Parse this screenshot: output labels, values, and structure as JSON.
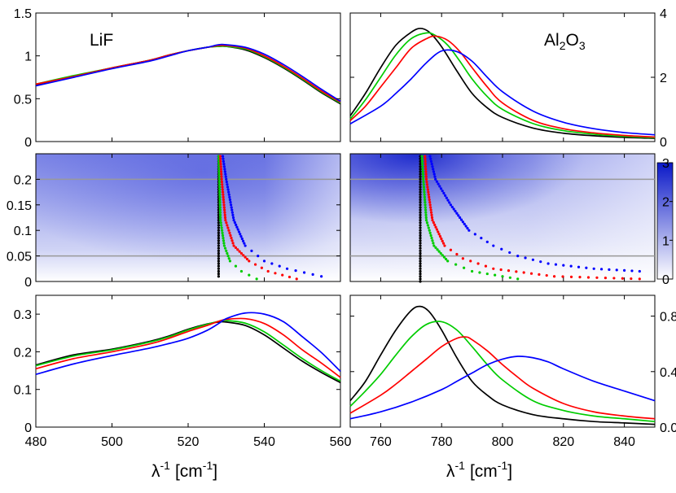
{
  "chart_data": [
    {
      "id": "lif-top",
      "type": "line",
      "xlim": [
        480,
        560
      ],
      "ylim": [
        0,
        1.5
      ],
      "yticks": [
        0,
        0.5,
        1,
        1.5
      ],
      "ytick_labels": [
        "0",
        "0.5",
        "1",
        "1.5"
      ],
      "label": "LiF",
      "series": [
        {
          "color": "#000000",
          "x": [
            480,
            490,
            500,
            510,
            515,
            520,
            525,
            528,
            530,
            535,
            540,
            545,
            550,
            555,
            560
          ],
          "y": [
            0.66,
            0.76,
            0.86,
            0.95,
            1.01,
            1.06,
            1.1,
            1.11,
            1.11,
            1.07,
            0.98,
            0.86,
            0.72,
            0.57,
            0.44
          ]
        },
        {
          "color": "#00cc00",
          "x": [
            480,
            490,
            500,
            510,
            515,
            520,
            525,
            528,
            530,
            535,
            540,
            545,
            550,
            555,
            560
          ],
          "y": [
            0.67,
            0.77,
            0.86,
            0.95,
            1.01,
            1.06,
            1.1,
            1.11,
            1.11,
            1.08,
            0.99,
            0.87,
            0.73,
            0.58,
            0.45
          ]
        },
        {
          "color": "#ff0000",
          "x": [
            480,
            490,
            500,
            510,
            515,
            520,
            525,
            528,
            530,
            535,
            540,
            545,
            550,
            555,
            560
          ],
          "y": [
            0.67,
            0.76,
            0.86,
            0.95,
            1.01,
            1.06,
            1.1,
            1.12,
            1.12,
            1.09,
            1.0,
            0.88,
            0.74,
            0.59,
            0.46
          ]
        },
        {
          "color": "#0000ff",
          "x": [
            480,
            490,
            500,
            510,
            515,
            520,
            525,
            528,
            530,
            535,
            540,
            545,
            550,
            555,
            560
          ],
          "y": [
            0.65,
            0.75,
            0.85,
            0.94,
            1.0,
            1.06,
            1.1,
            1.13,
            1.13,
            1.1,
            1.02,
            0.9,
            0.76,
            0.61,
            0.47
          ]
        }
      ]
    },
    {
      "id": "al2o3-top",
      "type": "line",
      "xlim": [
        750,
        850
      ],
      "ylim": [
        0,
        4
      ],
      "yticks": [
        0,
        2,
        4
      ],
      "ytick_labels": [
        "0",
        "2",
        "4"
      ],
      "label_main": "Al",
      "label_sub1": "2",
      "label_mid": "O",
      "label_sub2": "3",
      "series": [
        {
          "color": "#000000",
          "x": [
            750,
            755,
            760,
            765,
            770,
            773,
            776,
            780,
            785,
            790,
            795,
            800,
            810,
            820,
            830,
            840,
            850
          ],
          "y": [
            0.8,
            1.5,
            2.3,
            3.0,
            3.4,
            3.52,
            3.4,
            2.95,
            2.2,
            1.5,
            1.05,
            0.75,
            0.42,
            0.26,
            0.18,
            0.13,
            0.1
          ]
        },
        {
          "color": "#00cc00",
          "x": [
            750,
            755,
            760,
            765,
            770,
            775,
            778,
            782,
            786,
            790,
            795,
            800,
            810,
            820,
            830,
            840,
            850
          ],
          "y": [
            0.7,
            1.3,
            2.0,
            2.7,
            3.2,
            3.38,
            3.3,
            3.0,
            2.5,
            1.95,
            1.4,
            1.0,
            0.56,
            0.34,
            0.23,
            0.16,
            0.12
          ]
        },
        {
          "color": "#ff0000",
          "x": [
            750,
            755,
            760,
            765,
            770,
            775,
            778,
            782,
            786,
            790,
            795,
            800,
            810,
            820,
            830,
            840,
            850
          ],
          "y": [
            0.65,
            1.1,
            1.7,
            2.3,
            2.9,
            3.2,
            3.28,
            3.15,
            2.8,
            2.3,
            1.7,
            1.2,
            0.66,
            0.4,
            0.27,
            0.19,
            0.14
          ]
        },
        {
          "color": "#0000ff",
          "x": [
            750,
            760,
            765,
            770,
            775,
            780,
            785,
            790,
            795,
            800,
            810,
            820,
            830,
            840,
            850
          ],
          "y": [
            0.55,
            1.1,
            1.5,
            1.95,
            2.45,
            2.82,
            2.8,
            2.5,
            2.0,
            1.55,
            0.95,
            0.6,
            0.4,
            0.28,
            0.21
          ]
        }
      ]
    },
    {
      "id": "lif-mid",
      "type": "heatmap",
      "xlim": [
        480,
        560
      ],
      "ylim": [
        0,
        0.25
      ],
      "yticks": [
        0,
        0.05,
        0.1,
        0.15,
        0.2
      ],
      "ytick_labels": [
        "0",
        "0.05",
        "0.1",
        "0.15",
        "0.2"
      ],
      "hlines": [
        0.05,
        0.2
      ],
      "hline_color": "#999999",
      "dots": [
        {
          "color": "#000000",
          "points": [
            [
              528.0,
              0.01
            ],
            [
              528.0,
              0.05
            ],
            [
              528.0,
              0.1
            ],
            [
              528.0,
              0.15
            ],
            [
              528.0,
              0.2
            ],
            [
              528.0,
              0.25
            ]
          ]
        },
        {
          "color": "#00cc00",
          "points": [
            [
              538.0,
              0.005
            ],
            [
              534.0,
              0.02
            ],
            [
              531.0,
              0.04
            ],
            [
              529.5,
              0.07
            ],
            [
              528.5,
              0.12
            ],
            [
              528.2,
              0.2
            ],
            [
              528.0,
              0.25
            ]
          ]
        },
        {
          "color": "#ff0000",
          "points": [
            [
              548.5,
              0.005
            ],
            [
              541.0,
              0.02
            ],
            [
              536.0,
              0.04
            ],
            [
              532.0,
              0.07
            ],
            [
              529.8,
              0.12
            ],
            [
              528.8,
              0.2
            ],
            [
              528.4,
              0.25
            ]
          ]
        },
        {
          "color": "#0000ff",
          "points": [
            [
              555.0,
              0.01
            ],
            [
              546.0,
              0.025
            ],
            [
              540.0,
              0.04
            ],
            [
              535.0,
              0.07
            ],
            [
              532.0,
              0.12
            ],
            [
              530.0,
              0.2
            ],
            [
              529.0,
              0.25
            ]
          ]
        }
      ]
    },
    {
      "id": "al2o3-mid",
      "type": "heatmap",
      "xlim": [
        750,
        850
      ],
      "ylim": [
        0,
        0.25
      ],
      "hlines": [
        0.05,
        0.2
      ],
      "hline_color": "#999999",
      "colorbar": {
        "min": 0,
        "max": 3,
        "ticks": [
          0,
          1,
          2,
          3
        ],
        "tick_labels": [
          "0",
          "1",
          "2",
          "3"
        ],
        "low_color": "#ffffff",
        "high_color": "#0a18c8"
      },
      "dots": [
        {
          "color": "#000000",
          "points": [
            [
              773.0,
              0.0
            ],
            [
              773.0,
              0.05
            ],
            [
              773.0,
              0.1
            ],
            [
              773.0,
              0.15
            ],
            [
              773.0,
              0.2
            ],
            [
              773.0,
              0.25
            ]
          ]
        },
        {
          "color": "#00cc00",
          "points": [
            [
              805.0,
              0.005
            ],
            [
              790.0,
              0.02
            ],
            [
              782.0,
              0.04
            ],
            [
              777.5,
              0.07
            ],
            [
              775.0,
              0.12
            ],
            [
              774.0,
              0.2
            ],
            [
              773.5,
              0.25
            ]
          ]
        },
        {
          "color": "#ff0000",
          "points": [
            [
              845.0,
              0.005
            ],
            [
              817.0,
              0.01
            ],
            [
              797.0,
              0.025
            ],
            [
              787.0,
              0.045
            ],
            [
              781.0,
              0.07
            ],
            [
              777.0,
              0.12
            ],
            [
              775.0,
              0.2
            ],
            [
              774.5,
              0.25
            ]
          ]
        },
        {
          "color": "#0000ff",
          "points": [
            [
              845.0,
              0.02
            ],
            [
              830.0,
              0.025
            ],
            [
              815.0,
              0.035
            ],
            [
              805.0,
              0.05
            ],
            [
              797.0,
              0.07
            ],
            [
              789.0,
              0.1
            ],
            [
              783.0,
              0.15
            ],
            [
              778.0,
              0.2
            ],
            [
              776.0,
              0.25
            ]
          ]
        }
      ]
    },
    {
      "id": "lif-bot",
      "type": "line",
      "xlim": [
        480,
        560
      ],
      "ylim": [
        0,
        0.35
      ],
      "xticks": [
        480,
        500,
        520,
        540,
        560
      ],
      "xtick_labels": [
        "480",
        "500",
        "520",
        "540",
        "560"
      ],
      "yticks": [
        0,
        0.1,
        0.2,
        0.3
      ],
      "ytick_labels": [
        "0",
        "0.1",
        "0.2",
        "0.3"
      ],
      "series": [
        {
          "color": "#000000",
          "x": [
            480,
            490,
            500,
            510,
            515,
            520,
            525,
            528,
            530,
            535,
            540,
            545,
            550,
            555,
            560
          ],
          "y": [
            0.165,
            0.192,
            0.207,
            0.228,
            0.242,
            0.26,
            0.274,
            0.279,
            0.279,
            0.27,
            0.245,
            0.21,
            0.175,
            0.145,
            0.118
          ]
        },
        {
          "color": "#00cc00",
          "x": [
            480,
            490,
            500,
            510,
            515,
            520,
            525,
            528,
            530,
            535,
            540,
            545,
            550,
            555,
            560
          ],
          "y": [
            0.163,
            0.189,
            0.205,
            0.226,
            0.24,
            0.258,
            0.273,
            0.281,
            0.283,
            0.276,
            0.253,
            0.218,
            0.182,
            0.15,
            0.122
          ]
        },
        {
          "color": "#ff0000",
          "x": [
            480,
            490,
            500,
            510,
            515,
            520,
            525,
            528,
            530,
            535,
            540,
            545,
            550,
            555,
            560
          ],
          "y": [
            0.155,
            0.182,
            0.2,
            0.221,
            0.236,
            0.254,
            0.27,
            0.281,
            0.286,
            0.288,
            0.275,
            0.245,
            0.205,
            0.17,
            0.132
          ]
        },
        {
          "color": "#0000ff",
          "x": [
            480,
            490,
            500,
            510,
            515,
            520,
            525,
            528,
            530,
            535,
            540,
            545,
            550,
            555,
            560
          ],
          "y": [
            0.14,
            0.168,
            0.19,
            0.21,
            0.222,
            0.236,
            0.257,
            0.275,
            0.288,
            0.303,
            0.3,
            0.28,
            0.24,
            0.198,
            0.148
          ]
        }
      ]
    },
    {
      "id": "al2o3-bot",
      "type": "line",
      "xlim": [
        750,
        850
      ],
      "ylim": [
        0,
        0.95
      ],
      "xticks": [
        760,
        780,
        800,
        820,
        840
      ],
      "xtick_labels": [
        "760",
        "780",
        "800",
        "820",
        "840"
      ],
      "yticks": [
        0,
        0.4,
        0.8
      ],
      "ytick_labels": [
        "0.0",
        "0.4",
        "0.8"
      ],
      "series": [
        {
          "color": "#000000",
          "x": [
            750,
            755,
            760,
            765,
            770,
            773,
            776,
            780,
            785,
            790,
            795,
            800,
            810,
            820,
            830,
            840,
            850
          ],
          "y": [
            0.19,
            0.33,
            0.52,
            0.7,
            0.84,
            0.87,
            0.83,
            0.7,
            0.5,
            0.33,
            0.23,
            0.16,
            0.09,
            0.06,
            0.04,
            0.03,
            0.02
          ]
        },
        {
          "color": "#00cc00",
          "x": [
            750,
            755,
            760,
            765,
            770,
            775,
            780,
            785,
            790,
            795,
            800,
            810,
            820,
            830,
            840,
            850
          ],
          "y": [
            0.15,
            0.26,
            0.38,
            0.52,
            0.65,
            0.74,
            0.76,
            0.7,
            0.58,
            0.45,
            0.34,
            0.19,
            0.12,
            0.08,
            0.06,
            0.04
          ]
        },
        {
          "color": "#ff0000",
          "x": [
            750,
            760,
            765,
            770,
            775,
            780,
            785,
            788,
            790,
            795,
            800,
            805,
            810,
            820,
            830,
            840,
            850
          ],
          "y": [
            0.1,
            0.23,
            0.31,
            0.4,
            0.49,
            0.58,
            0.64,
            0.65,
            0.63,
            0.55,
            0.45,
            0.36,
            0.28,
            0.17,
            0.11,
            0.08,
            0.06
          ]
        },
        {
          "color": "#0000ff",
          "x": [
            750,
            760,
            770,
            780,
            785,
            790,
            795,
            800,
            805,
            810,
            815,
            820,
            830,
            840,
            850
          ],
          "y": [
            0.06,
            0.11,
            0.18,
            0.27,
            0.33,
            0.39,
            0.45,
            0.49,
            0.51,
            0.5,
            0.47,
            0.42,
            0.33,
            0.26,
            0.19
          ]
        }
      ]
    }
  ],
  "axis_labels": {
    "x_left": {
      "base": "λ",
      "sup1": "-1",
      "unit": "[cm",
      "sup2": "-1",
      "close": "]"
    },
    "x_right": {
      "base": "λ",
      "sup1": "-1",
      "unit": "[cm",
      "sup2": "-1",
      "close": "]"
    }
  }
}
